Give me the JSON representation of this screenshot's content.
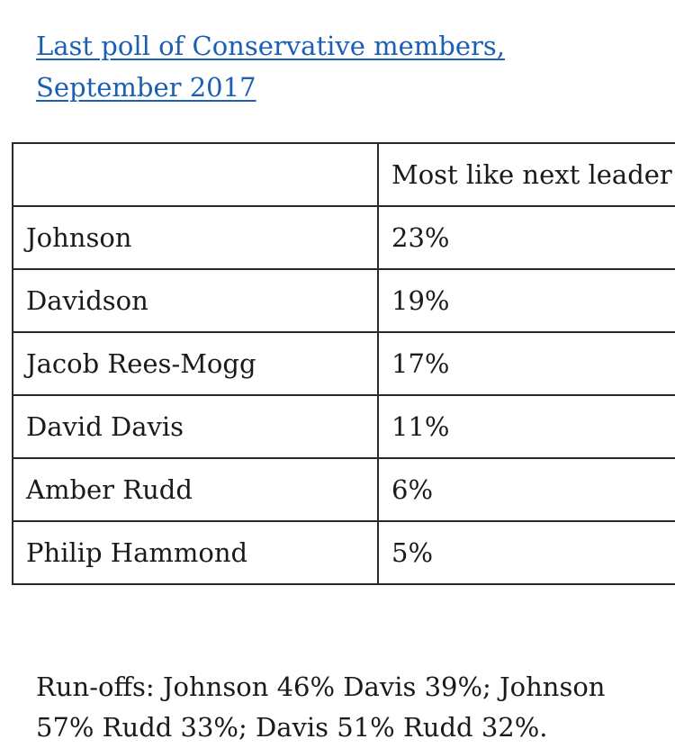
{
  "heading": {
    "link_text": "Last poll of Conservative members, September 2017"
  },
  "table": {
    "header": [
      "",
      "Most like next leader"
    ],
    "rows": [
      [
        "Johnson",
        "23%"
      ],
      [
        "Davidson",
        "19%"
      ],
      [
        "Jacob Rees-Mogg",
        "17%"
      ],
      [
        "David Davis",
        "11%"
      ],
      [
        "Amber Rudd",
        "6%"
      ],
      [
        "Philip Hammond",
        "5%"
      ]
    ]
  },
  "footer": {
    "runoffs_text": "Run-offs: Johnson 46% Davis 39%; Johnson 57% Rudd 33%; Davis 51% Rudd 32%."
  }
}
